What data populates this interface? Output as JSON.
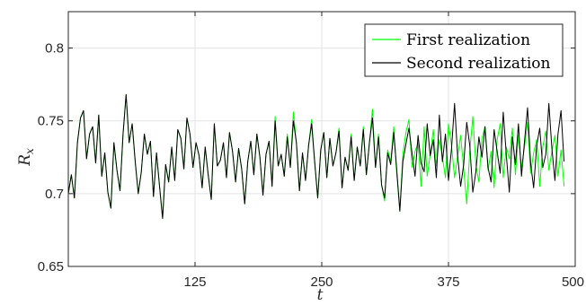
{
  "chart_data": {
    "type": "line",
    "xlabel": "t",
    "ylabel_main": "R",
    "ylabel_sub": "x",
    "xlim": [
      0,
      500
    ],
    "ylim": [
      0.65,
      0.825
    ],
    "xticks": [
      125,
      250,
      375,
      500
    ],
    "xtick_labels": [
      "125",
      "250",
      "375",
      "500"
    ],
    "yticks": [
      0.65,
      0.7,
      0.75,
      0.8
    ],
    "ytick_labels": [
      "0.65",
      "0.7",
      "0.75",
      "0.8"
    ],
    "grid": true,
    "legend_position": "top-right",
    "series": [
      {
        "name": "First realization",
        "color": "#00ff00",
        "x_step": 3,
        "values": [
          0.7,
          0.713,
          0.697,
          0.735,
          0.752,
          0.757,
          0.724,
          0.741,
          0.746,
          0.721,
          0.754,
          0.712,
          0.728,
          0.701,
          0.69,
          0.735,
          0.716,
          0.702,
          0.741,
          0.768,
          0.735,
          0.748,
          0.722,
          0.7,
          0.715,
          0.741,
          0.727,
          0.736,
          0.698,
          0.728,
          0.705,
          0.683,
          0.72,
          0.708,
          0.732,
          0.709,
          0.744,
          0.738,
          0.717,
          0.752,
          0.741,
          0.718,
          0.735,
          0.726,
          0.704,
          0.732,
          0.713,
          0.696,
          0.748,
          0.719,
          0.723,
          0.735,
          0.711,
          0.742,
          0.729,
          0.708,
          0.731,
          0.717,
          0.693,
          0.722,
          0.736,
          0.713,
          0.741,
          0.725,
          0.699,
          0.727,
          0.736,
          0.705,
          0.753,
          0.719,
          0.727,
          0.712,
          0.741,
          0.718,
          0.756,
          0.735,
          0.702,
          0.728,
          0.709,
          0.733,
          0.751,
          0.722,
          0.697,
          0.73,
          0.742,
          0.711,
          0.738,
          0.719,
          0.728,
          0.745,
          0.704,
          0.725,
          0.716,
          0.741,
          0.709,
          0.732,
          0.719,
          0.746,
          0.713,
          0.735,
          0.758,
          0.718,
          0.741,
          0.706,
          0.695,
          0.73,
          0.722,
          0.746,
          0.713,
          0.688,
          0.727,
          0.742,
          0.751,
          0.718,
          0.729,
          0.735,
          0.705,
          0.746,
          0.712,
          0.727,
          0.744,
          0.719,
          0.737,
          0.725,
          0.711,
          0.748,
          0.733,
          0.711,
          0.726,
          0.74,
          0.717,
          0.693,
          0.729,
          0.753,
          0.72,
          0.708,
          0.738,
          0.746,
          0.716,
          0.729,
          0.704,
          0.737,
          0.748,
          0.711,
          0.732,
          0.724,
          0.745,
          0.713,
          0.74,
          0.718,
          0.732,
          0.749,
          0.714,
          0.728,
          0.737,
          0.705,
          0.732,
          0.743,
          0.716,
          0.729,
          0.74,
          0.712,
          0.73,
          0.705
        ]
      },
      {
        "name": "Second realization",
        "color": "#000000",
        "x_step": 3,
        "values": [
          0.7,
          0.713,
          0.697,
          0.735,
          0.752,
          0.757,
          0.724,
          0.741,
          0.746,
          0.721,
          0.754,
          0.712,
          0.728,
          0.701,
          0.69,
          0.735,
          0.716,
          0.702,
          0.741,
          0.768,
          0.735,
          0.748,
          0.722,
          0.7,
          0.715,
          0.741,
          0.727,
          0.736,
          0.698,
          0.728,
          0.705,
          0.683,
          0.72,
          0.708,
          0.732,
          0.709,
          0.744,
          0.738,
          0.717,
          0.752,
          0.741,
          0.718,
          0.735,
          0.726,
          0.704,
          0.732,
          0.713,
          0.696,
          0.748,
          0.719,
          0.723,
          0.735,
          0.711,
          0.742,
          0.729,
          0.708,
          0.731,
          0.717,
          0.693,
          0.722,
          0.736,
          0.713,
          0.741,
          0.725,
          0.699,
          0.727,
          0.736,
          0.705,
          0.75,
          0.719,
          0.727,
          0.712,
          0.739,
          0.718,
          0.75,
          0.735,
          0.702,
          0.728,
          0.709,
          0.733,
          0.748,
          0.722,
          0.697,
          0.73,
          0.742,
          0.711,
          0.738,
          0.719,
          0.728,
          0.743,
          0.704,
          0.725,
          0.716,
          0.739,
          0.709,
          0.732,
          0.719,
          0.744,
          0.713,
          0.735,
          0.752,
          0.718,
          0.739,
          0.706,
          0.697,
          0.728,
          0.72,
          0.742,
          0.716,
          0.688,
          0.722,
          0.734,
          0.745,
          0.728,
          0.712,
          0.74,
          0.721,
          0.715,
          0.748,
          0.726,
          0.737,
          0.711,
          0.754,
          0.722,
          0.741,
          0.709,
          0.731,
          0.762,
          0.726,
          0.705,
          0.72,
          0.749,
          0.733,
          0.701,
          0.715,
          0.739,
          0.725,
          0.746,
          0.718,
          0.708,
          0.744,
          0.729,
          0.714,
          0.756,
          0.727,
          0.701,
          0.739,
          0.72,
          0.748,
          0.712,
          0.736,
          0.759,
          0.721,
          0.704,
          0.733,
          0.745,
          0.718,
          0.727,
          0.762,
          0.731,
          0.709,
          0.741,
          0.757,
          0.722
        ]
      }
    ]
  }
}
